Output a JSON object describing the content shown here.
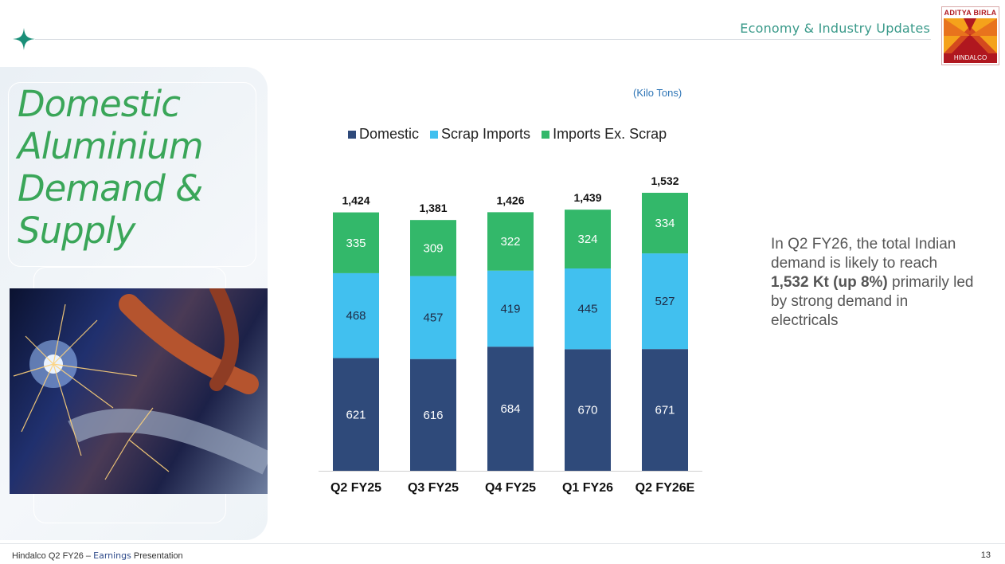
{
  "header": {
    "section_title": "Economy & Industry Updates",
    "logo_top": "ADITYA BIRLA",
    "logo_bottom": "HINDALCO"
  },
  "slide": {
    "title": "Domestic Aluminium Demand & Supply",
    "unit_label": "(Kilo Tons)"
  },
  "colors": {
    "domestic": "#2f4a7a",
    "scrap_imports": "#41c0ef",
    "imports_ex_scrap": "#33b86a",
    "title_green": "#3aa659"
  },
  "chart_data": {
    "type": "bar",
    "stacked": true,
    "categories": [
      "Q2 FY25",
      "Q3 FY25",
      "Q4 FY25",
      "Q1 FY26",
      "Q2 FY26E"
    ],
    "series": [
      {
        "name": "Domestic",
        "values": [
          621,
          616,
          684,
          670,
          671
        ],
        "color": "#2f4a7a"
      },
      {
        "name": "Scrap Imports",
        "values": [
          468,
          457,
          419,
          445,
          527
        ],
        "color": "#41c0ef"
      },
      {
        "name": "Imports Ex. Scrap",
        "values": [
          335,
          309,
          322,
          324,
          334
        ],
        "color": "#33b86a"
      }
    ],
    "totals": [
      "1,424",
      "1,381",
      "1,426",
      "1,439",
      "1,532"
    ],
    "title": "",
    "xlabel": "",
    "ylabel": "",
    "ylim": [
      0,
      1532
    ],
    "legend": "top",
    "grid": false
  },
  "commentary": {
    "pre": "In Q2 FY26, the total Indian demand is likely to reach ",
    "bold": "1,532 Kt (up 8%)",
    "post": " primarily led by strong demand in electricals"
  },
  "footer": {
    "left_pre": "Hindalco Q2 FY26 – ",
    "left_accent": "Earnings",
    "left_post": " Presentation",
    "page_number": "13"
  }
}
